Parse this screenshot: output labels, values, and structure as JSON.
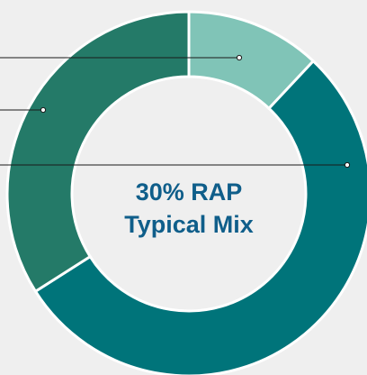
{
  "chart_data": {
    "type": "pie",
    "subtype": "donut",
    "segments": [
      {
        "value": 12,
        "color": "#80c4b7"
      },
      {
        "value": 54,
        "color": "#00747a"
      },
      {
        "value": 34,
        "color": "#247a68"
      }
    ],
    "center_text": {
      "line1": "30% RAP",
      "line2": "Typical Mix",
      "color": "#0f5e8a"
    },
    "leader_line_color": "#1a1a1a",
    "separator_color": "#ffffff"
  }
}
